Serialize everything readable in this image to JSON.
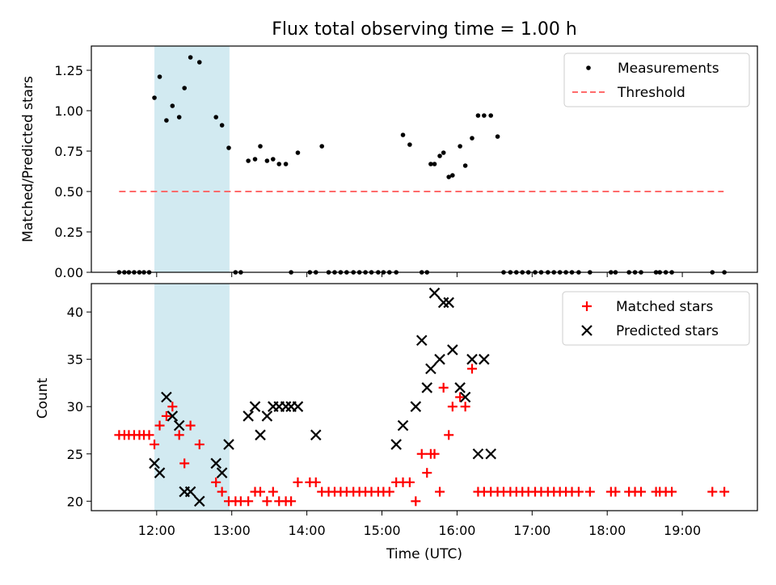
{
  "title": "Flux total observing time = 1.00 h",
  "colors": {
    "measurement": "#000000",
    "threshold": "#ff6b6b",
    "matched": "#ff0000",
    "predicted": "#000000",
    "highlight": "#add8e6"
  },
  "chart_data": [
    {
      "type": "scatter",
      "title": "Flux total observing time = 1.00 h",
      "ylabel": "Matched/Predicted stars",
      "xlabel": "",
      "xlim_hours": [
        11.13,
        20.0
      ],
      "ylim": [
        0,
        1.4
      ],
      "yticks": [
        0.0,
        0.25,
        0.5,
        0.75,
        1.0,
        1.25
      ],
      "ytick_labels": [
        "0.00",
        "0.25",
        "0.50",
        "0.75",
        "1.00",
        "1.25"
      ],
      "xticks_hours": [
        12,
        13,
        14,
        15,
        16,
        17,
        18,
        19
      ],
      "highlight_span_hours": [
        11.97,
        12.97
      ],
      "legend_position": "upper right",
      "legend": [
        "Measurements",
        "Threshold"
      ],
      "threshold": {
        "value": 0.5,
        "x_range_hours": [
          11.5,
          19.55
        ]
      },
      "series": [
        {
          "name": "Measurements",
          "x_hours": [
            11.5,
            11.57,
            11.63,
            11.7,
            11.77,
            11.83,
            11.9,
            11.97,
            12.04,
            12.13,
            12.21,
            12.3,
            12.37,
            12.45,
            12.57,
            12.79,
            12.87,
            12.96,
            13.05,
            13.12,
            13.22,
            13.31,
            13.38,
            13.47,
            13.55,
            13.63,
            13.72,
            13.79,
            13.88,
            14.04,
            14.12,
            14.2,
            14.29,
            14.37,
            14.45,
            14.53,
            14.62,
            14.7,
            14.78,
            14.86,
            14.95,
            15.02,
            15.1,
            15.19,
            15.28,
            15.37,
            15.53,
            15.6,
            15.65,
            15.7,
            15.77,
            15.82,
            15.89,
            15.94,
            16.04,
            16.11,
            16.2,
            16.28,
            16.36,
            16.45,
            16.54,
            16.62,
            16.71,
            16.79,
            16.87,
            16.95,
            17.04,
            17.12,
            17.21,
            17.29,
            17.37,
            17.45,
            17.53,
            17.62,
            17.77,
            18.05,
            18.11,
            18.29,
            18.37,
            18.45,
            18.65,
            18.7,
            18.78,
            18.86,
            19.4,
            19.56
          ],
          "y": [
            0,
            0,
            0,
            0,
            0,
            0,
            0,
            1.08,
            1.21,
            0.94,
            1.03,
            0.96,
            1.14,
            1.33,
            1.3,
            0.96,
            0.91,
            0.77,
            0,
            0,
            0.69,
            0.7,
            0.78,
            0.69,
            0.7,
            0.67,
            0.67,
            0,
            0.74,
            0,
            0,
            0.78,
            0,
            0,
            0,
            0,
            0,
            0,
            0,
            0,
            0,
            0,
            0,
            0,
            0.85,
            0.79,
            0,
            0,
            0.67,
            0.67,
            0.72,
            0.74,
            0.59,
            0.6,
            0.78,
            0.66,
            0.83,
            0.97,
            0.97,
            0.97,
            0.84,
            0,
            0,
            0,
            0,
            0,
            0,
            0,
            0,
            0,
            0,
            0,
            0,
            0,
            0,
            0,
            0,
            0,
            0,
            0,
            0,
            0,
            0,
            0,
            0,
            0
          ]
        }
      ]
    },
    {
      "type": "scatter",
      "title": "",
      "xlabel": "Time (UTC)",
      "ylabel": "Count",
      "xlim_hours": [
        11.13,
        20.0
      ],
      "ylim": [
        19,
        43
      ],
      "yticks": [
        20,
        25,
        30,
        35,
        40
      ],
      "ytick_labels": [
        "20",
        "25",
        "30",
        "35",
        "40"
      ],
      "xticks_hours": [
        12,
        13,
        14,
        15,
        16,
        17,
        18,
        19
      ],
      "xtick_labels": [
        "12:00",
        "13:00",
        "14:00",
        "15:00",
        "16:00",
        "17:00",
        "18:00",
        "19:00"
      ],
      "highlight_span_hours": [
        11.97,
        12.97
      ],
      "legend_position": "upper right",
      "legend": [
        "Matched stars",
        "Predicted stars"
      ],
      "series": [
        {
          "name": "Matched stars",
          "marker": "plus",
          "x_hours": [
            11.5,
            11.57,
            11.63,
            11.7,
            11.77,
            11.83,
            11.9,
            11.97,
            12.04,
            12.13,
            12.21,
            12.3,
            12.37,
            12.45,
            12.57,
            12.79,
            12.87,
            12.96,
            13.05,
            13.12,
            13.22,
            13.31,
            13.38,
            13.47,
            13.55,
            13.63,
            13.72,
            13.79,
            13.88,
            14.04,
            14.12,
            14.2,
            14.29,
            14.37,
            14.45,
            14.53,
            14.62,
            14.7,
            14.78,
            14.86,
            14.95,
            15.02,
            15.1,
            15.19,
            15.28,
            15.37,
            15.45,
            15.53,
            15.6,
            15.65,
            15.7,
            15.77,
            15.82,
            15.89,
            15.94,
            16.04,
            16.11,
            16.2,
            16.28,
            16.36,
            16.45,
            16.54,
            16.62,
            16.71,
            16.79,
            16.87,
            16.95,
            17.04,
            17.12,
            17.21,
            17.29,
            17.37,
            17.45,
            17.53,
            17.62,
            17.77,
            18.05,
            18.11,
            18.29,
            18.37,
            18.45,
            18.65,
            18.7,
            18.78,
            18.86,
            19.4,
            19.56
          ],
          "y": [
            27,
            27,
            27,
            27,
            27,
            27,
            27,
            26,
            28,
            29,
            30,
            27,
            24,
            28,
            26,
            22,
            21,
            20,
            20,
            20,
            20,
            21,
            21,
            20,
            21,
            20,
            20,
            20,
            22,
            22,
            22,
            21,
            21,
            21,
            21,
            21,
            21,
            21,
            21,
            21,
            21,
            21,
            21,
            22,
            22,
            22,
            20,
            25,
            23,
            25,
            25,
            21,
            32,
            27,
            30,
            31,
            30,
            34,
            21,
            21,
            21,
            21,
            21,
            21,
            21,
            21,
            21,
            21,
            21,
            21,
            21,
            21,
            21,
            21,
            21,
            21,
            21,
            21,
            21,
            21,
            21,
            21,
            21,
            21,
            21,
            21,
            21
          ]
        },
        {
          "name": "Predicted stars",
          "marker": "x",
          "x_hours": [
            11.97,
            12.04,
            12.13,
            12.21,
            12.3,
            12.37,
            12.45,
            12.57,
            12.79,
            12.87,
            12.96,
            13.22,
            13.31,
            13.38,
            13.47,
            13.55,
            13.63,
            13.72,
            13.79,
            13.88,
            14.12,
            15.19,
            15.28,
            15.45,
            15.53,
            15.6,
            15.65,
            15.7,
            15.77,
            15.82,
            15.89,
            15.94,
            16.04,
            16.11,
            16.2,
            16.28,
            16.36,
            16.45
          ],
          "y": [
            24,
            23,
            31,
            29,
            28,
            21,
            21,
            20,
            24,
            23,
            26,
            29,
            30,
            27,
            29,
            30,
            30,
            30,
            30,
            30,
            27,
            26,
            28,
            30,
            37,
            32,
            34,
            42,
            35,
            41,
            41,
            36,
            32,
            31,
            35,
            25,
            35,
            25
          ]
        }
      ]
    }
  ]
}
